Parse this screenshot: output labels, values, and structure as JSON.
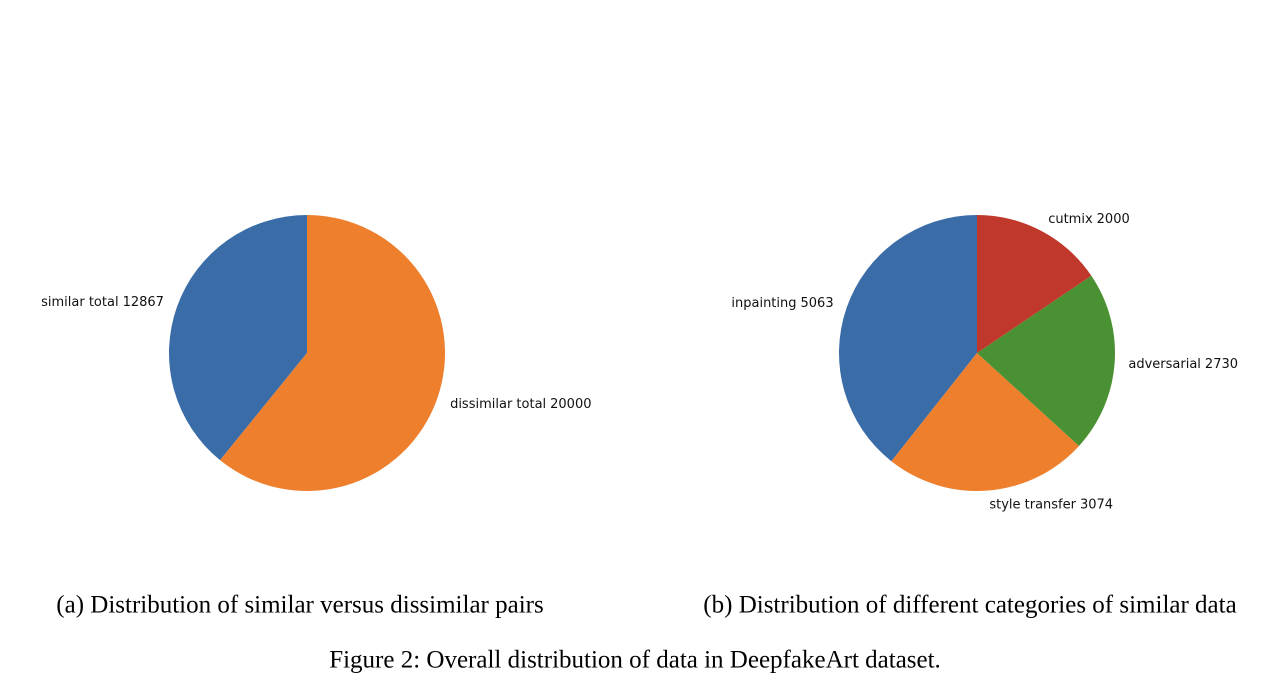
{
  "chart_data": [
    {
      "type": "pie",
      "caption": "(a) Distribution of similar versus dissimilar pairs",
      "categories": [
        "similar total",
        "dissimilar total"
      ],
      "values": [
        12867,
        20000
      ],
      "colors": [
        "#3a6ca8",
        "#ee7f2d"
      ]
    },
    {
      "type": "pie",
      "caption": "(b) Distribution of different categories of similar data",
      "categories": [
        "inpainting",
        "style transfer",
        "adversarial",
        "cutmix"
      ],
      "values": [
        5063,
        3074,
        2730,
        2000
      ],
      "colors": [
        "#3a6ca8",
        "#ee7f2d",
        "#4a9133",
        "#bf382b"
      ]
    }
  ],
  "figure_caption": "Figure 2: Overall distribution of data in DeepfakeArt dataset."
}
